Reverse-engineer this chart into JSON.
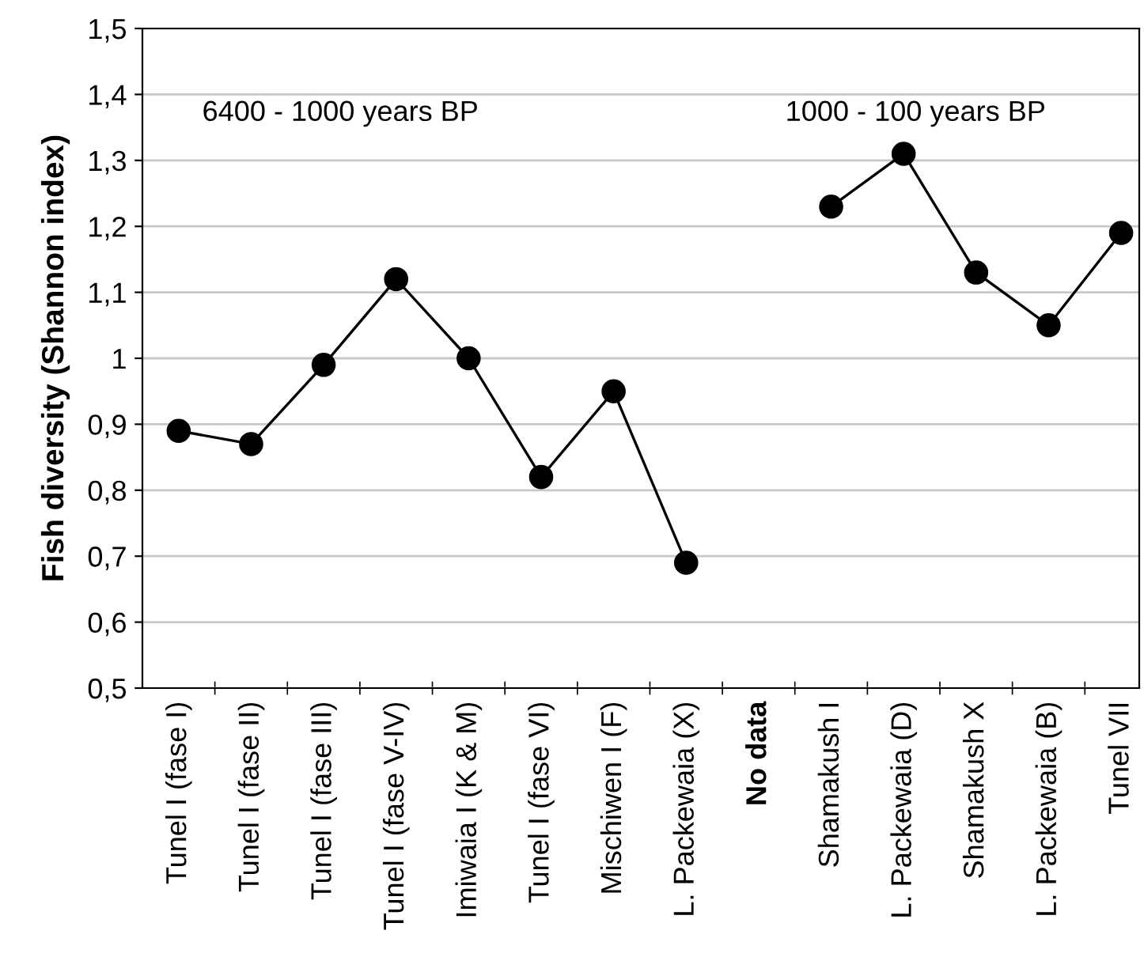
{
  "chart_data": {
    "type": "line",
    "ylabel": "Fish diversity (Shannon index)",
    "categories": [
      "Tunel I (fase I)",
      "Tunel I (fase II)",
      "Tunel I (fase III)",
      "Tunel I (fase V-IV)",
      "Imiwaia I (K & M)",
      "Tunel I (fase VI)",
      "Mischiwen I (F)",
      "L. Packewaia (X)",
      "No data",
      "Shamakush I",
      "L. Packewaia (D)",
      "Shamakush X",
      "L. Packewaia (B)",
      "Tunel VII"
    ],
    "series": [
      {
        "color": "#000000",
        "values": [
          0.89,
          0.87,
          0.99,
          1.12,
          1.0,
          0.82,
          0.95,
          0.69,
          null,
          1.23,
          1.31,
          1.13,
          1.05,
          1.19
        ]
      }
    ],
    "ylim": [
      0.5,
      1.5
    ],
    "yticks": [
      {
        "value": 0.5,
        "label": "0,5"
      },
      {
        "value": 0.6,
        "label": "0,6"
      },
      {
        "value": 0.7,
        "label": "0,7"
      },
      {
        "value": 0.8,
        "label": "0,8"
      },
      {
        "value": 0.9,
        "label": "0,9"
      },
      {
        "value": 1,
        "label": "1"
      },
      {
        "value": 1.1,
        "label": "1,1"
      },
      {
        "value": 1.2,
        "label": "1,2"
      },
      {
        "value": 1.3,
        "label": "1,3"
      },
      {
        "value": 1.4,
        "label": "1,4"
      },
      {
        "value": 1.5,
        "label": "1,5"
      }
    ],
    "grid": "y",
    "marker": "circle",
    "line_style": "solid",
    "annotations": [
      "6400 - 1000 years BP",
      "1000 - 100 years BP"
    ]
  }
}
